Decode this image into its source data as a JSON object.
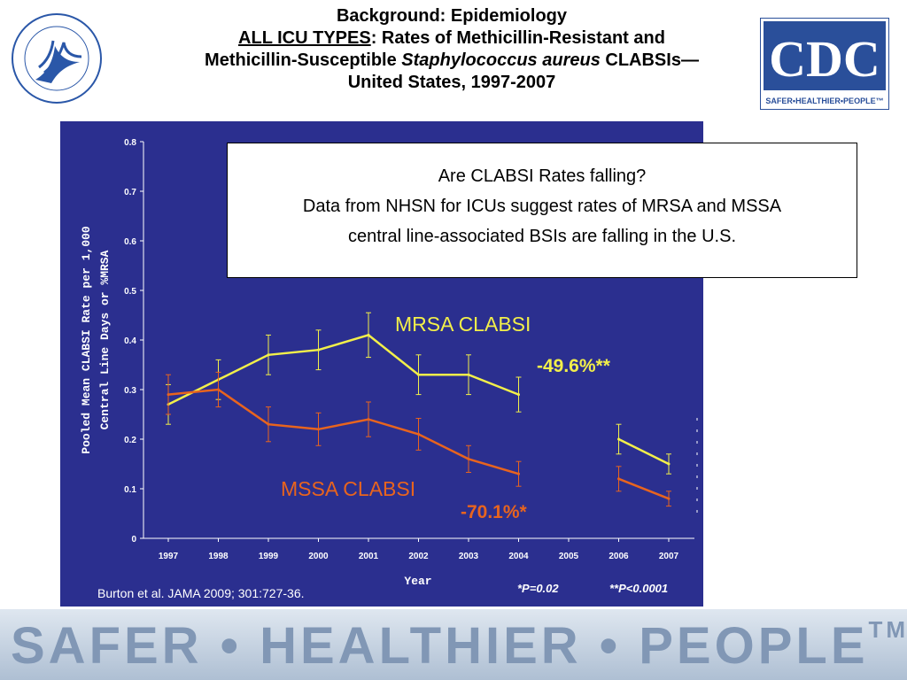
{
  "header": {
    "line1": "Background: Epidemiology",
    "line2_underlined": "ALL ICU TYPES",
    "line2_rest": ": Rates of Methicillin-Resistant and",
    "line3_pre": "Methicillin-Susceptible ",
    "line3_italic": "Staphylococcus aureus",
    "line3_post": " CLABSIs—",
    "line4": "United States, 1997-2007"
  },
  "logos": {
    "cdc_text": "CDC",
    "cdc_tagline": "SAFER•HEALTHIER•PEOPLE™"
  },
  "callout": {
    "line1": "Are CLABSI Rates falling?",
    "line2": "Data from NHSN for ICUs suggest rates of MRSA and MSSA",
    "line3": "central line-associated BSIs are falling in the U.S."
  },
  "annotations": {
    "mrsa_label": "MRSA CLABSI",
    "mrsa_change": "-49.6%**",
    "mssa_label": "MSSA CLABSI",
    "mssa_change": "-70.1%*",
    "citation": "Burton et al. JAMA 2009; 301:727-36.",
    "p1": "*P=0.02",
    "p2": "**P<0.0001"
  },
  "footer": {
    "text": "SAFER • HEALTHIER • PEOPLE",
    "tm": "TM"
  },
  "colors": {
    "panel": "#2b2f8f",
    "mrsa": "#f2ef4a",
    "mssa": "#e8641e",
    "axis": "#ffffff"
  },
  "chart_data": {
    "type": "line",
    "xlabel": "Year",
    "ylabel_line1": "Pooled Mean CLABSI Rate per 1,000",
    "ylabel_line2": "Central Line Days or %MRSA",
    "ylim": [
      0,
      0.8
    ],
    "y_ticks": [
      "0",
      "0.1",
      "0.2",
      "0.3",
      "0.4",
      "0.5",
      "0.6",
      "0.7",
      "0.8"
    ],
    "categories": [
      "1997",
      "1998",
      "1999",
      "2000",
      "2001",
      "2002",
      "2003",
      "2004",
      "2005",
      "2006",
      "2007"
    ],
    "grid": false,
    "series": [
      {
        "name": "MRSA CLABSI",
        "color": "#f2ef4a",
        "segments": [
          {
            "x": [
              "1997",
              "1998",
              "1999",
              "2000",
              "2001",
              "2002",
              "2003",
              "2004"
            ],
            "y": [
              0.27,
              0.32,
              0.37,
              0.38,
              0.41,
              0.33,
              0.33,
              0.29
            ],
            "err": [
              0.04,
              0.04,
              0.04,
              0.04,
              0.045,
              0.04,
              0.04,
              0.035
            ]
          },
          {
            "x": [
              "2006",
              "2007"
            ],
            "y": [
              0.2,
              0.15
            ],
            "err": [
              0.03,
              0.02
            ]
          }
        ]
      },
      {
        "name": "MSSA CLABSI",
        "color": "#e8641e",
        "segments": [
          {
            "x": [
              "1997",
              "1998",
              "1999",
              "2000",
              "2001",
              "2002",
              "2003",
              "2004"
            ],
            "y": [
              0.29,
              0.3,
              0.23,
              0.22,
              0.24,
              0.21,
              0.16,
              0.13
            ],
            "err": [
              0.04,
              0.035,
              0.035,
              0.033,
              0.035,
              0.032,
              0.027,
              0.025
            ]
          },
          {
            "x": [
              "2006",
              "2007"
            ],
            "y": [
              0.12,
              0.08
            ],
            "err": [
              0.025,
              0.015
            ]
          }
        ]
      }
    ]
  }
}
